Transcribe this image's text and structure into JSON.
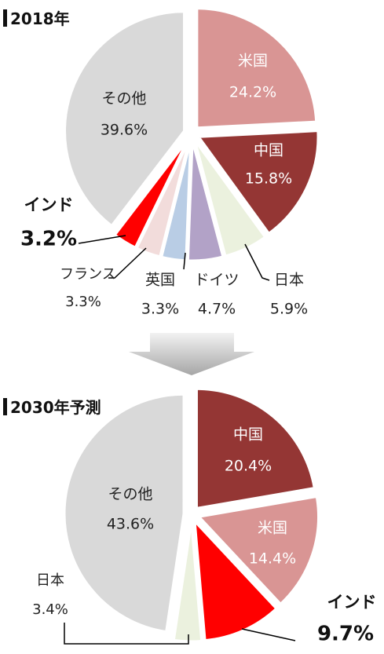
{
  "chart_data": [
    {
      "type": "pie",
      "title": "2018年",
      "slices": [
        {
          "label": "米国",
          "value": 24.2,
          "color": "#D99594"
        },
        {
          "label": "中国",
          "value": 15.8,
          "color": "#943634"
        },
        {
          "label": "日本",
          "value": 5.9,
          "color": "#EBF1DE"
        },
        {
          "label": "ドイツ",
          "value": 4.7,
          "color": "#B2A2C7"
        },
        {
          "label": "英国",
          "value": 3.3,
          "color": "#B9CDE5"
        },
        {
          "label": "フランス",
          "value": 3.3,
          "color": "#F2DCDB"
        },
        {
          "label": "インド",
          "value": 3.2,
          "color": "#FF0000"
        },
        {
          "label": "その他",
          "value": 39.6,
          "color": "#D9D9D9"
        }
      ]
    },
    {
      "type": "pie",
      "title": "2030年予測",
      "slices": [
        {
          "label": "中国",
          "value": 20.4,
          "color": "#943634"
        },
        {
          "label": "米国",
          "value": 14.4,
          "color": "#D99594"
        },
        {
          "label": "インド",
          "value": 9.7,
          "color": "#FF0000"
        },
        {
          "label": "日本",
          "value": 3.4,
          "color": "#EBF1DE"
        },
        {
          "label": "その他",
          "value": 43.6,
          "color": "#D9D9D9"
        }
      ]
    }
  ],
  "value_suffix": "%"
}
